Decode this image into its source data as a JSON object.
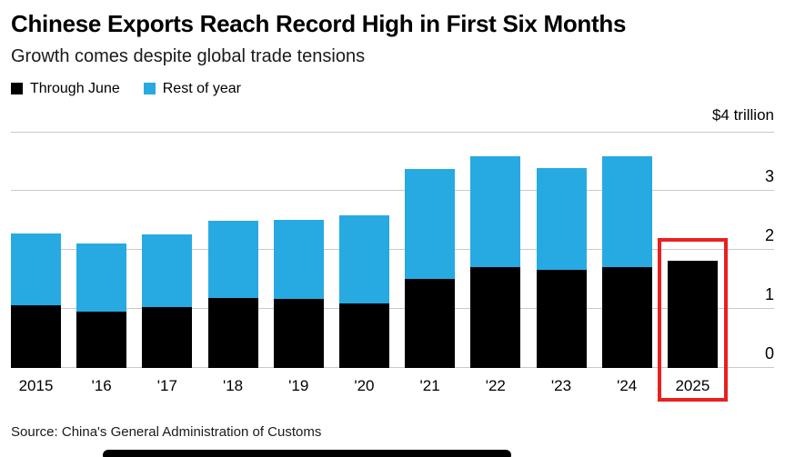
{
  "chart_data": {
    "type": "bar",
    "stacked": true,
    "title": "Chinese Exports Reach Record High in First Six Months",
    "subtitle": "Growth comes despite global trade tensions",
    "unit": "$ trillion",
    "categories": [
      "2015",
      "'16",
      "'17",
      "'18",
      "'19",
      "'20",
      "'21",
      "'22",
      "'23",
      "'24",
      "2025"
    ],
    "series": [
      {
        "name": "Through June",
        "color": "#000000",
        "values": [
          1.06,
          0.95,
          1.03,
          1.18,
          1.17,
          1.09,
          1.5,
          1.71,
          1.66,
          1.71,
          1.81
        ]
      },
      {
        "name": "Rest of year",
        "color": "#27aae1",
        "values": [
          1.21,
          1.16,
          1.23,
          1.31,
          1.34,
          1.5,
          1.87,
          1.88,
          1.73,
          1.87,
          0
        ]
      }
    ],
    "ylim": [
      0,
      4
    ],
    "yticks": [
      0,
      1,
      2,
      3,
      4
    ],
    "axis_top_label": "$4 trillion",
    "ytick_labels": [
      "3",
      "2",
      "1",
      "0"
    ],
    "grid": true,
    "legend_position": "top-left",
    "highlight": {
      "category": "2025",
      "color": "#e8211f"
    },
    "source": "Source: China's General Administration of Customs"
  }
}
